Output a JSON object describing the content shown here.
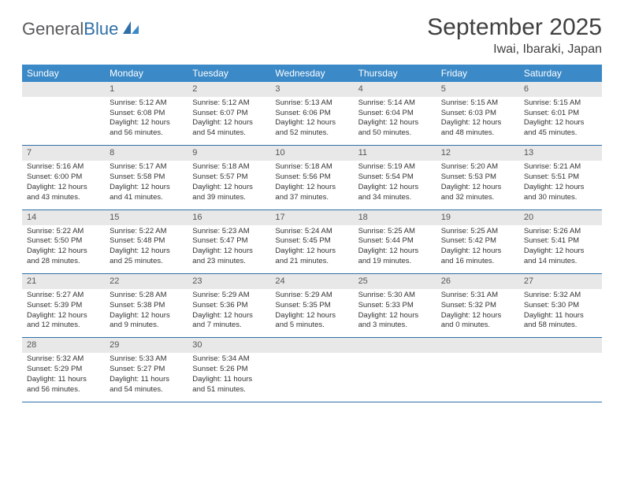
{
  "logo": {
    "text_general": "General",
    "text_blue": "Blue"
  },
  "header": {
    "month_title": "September 2025",
    "location": "Iwai, Ibaraki, Japan"
  },
  "colors": {
    "header_bg": "#3b89c7",
    "header_text": "#ffffff",
    "daynum_bg": "#e8e8e8",
    "cell_border": "#2f6fa7",
    "body_text": "#333333",
    "logo_gray": "#58595b",
    "logo_blue": "#2f6fa7"
  },
  "typography": {
    "month_title_fontsize": 30,
    "location_fontsize": 16,
    "dayheader_fontsize": 12,
    "daynum_fontsize": 11,
    "cell_fontsize": 9.5
  },
  "day_headers": [
    "Sunday",
    "Monday",
    "Tuesday",
    "Wednesday",
    "Thursday",
    "Friday",
    "Saturday"
  ],
  "weeks": [
    {
      "nums": [
        "",
        "1",
        "2",
        "3",
        "4",
        "5",
        "6"
      ],
      "cells": [
        null,
        {
          "sunrise": "Sunrise: 5:12 AM",
          "sunset": "Sunset: 6:08 PM",
          "daylight1": "Daylight: 12 hours",
          "daylight2": "and 56 minutes."
        },
        {
          "sunrise": "Sunrise: 5:12 AM",
          "sunset": "Sunset: 6:07 PM",
          "daylight1": "Daylight: 12 hours",
          "daylight2": "and 54 minutes."
        },
        {
          "sunrise": "Sunrise: 5:13 AM",
          "sunset": "Sunset: 6:06 PM",
          "daylight1": "Daylight: 12 hours",
          "daylight2": "and 52 minutes."
        },
        {
          "sunrise": "Sunrise: 5:14 AM",
          "sunset": "Sunset: 6:04 PM",
          "daylight1": "Daylight: 12 hours",
          "daylight2": "and 50 minutes."
        },
        {
          "sunrise": "Sunrise: 5:15 AM",
          "sunset": "Sunset: 6:03 PM",
          "daylight1": "Daylight: 12 hours",
          "daylight2": "and 48 minutes."
        },
        {
          "sunrise": "Sunrise: 5:15 AM",
          "sunset": "Sunset: 6:01 PM",
          "daylight1": "Daylight: 12 hours",
          "daylight2": "and 45 minutes."
        }
      ]
    },
    {
      "nums": [
        "7",
        "8",
        "9",
        "10",
        "11",
        "12",
        "13"
      ],
      "cells": [
        {
          "sunrise": "Sunrise: 5:16 AM",
          "sunset": "Sunset: 6:00 PM",
          "daylight1": "Daylight: 12 hours",
          "daylight2": "and 43 minutes."
        },
        {
          "sunrise": "Sunrise: 5:17 AM",
          "sunset": "Sunset: 5:58 PM",
          "daylight1": "Daylight: 12 hours",
          "daylight2": "and 41 minutes."
        },
        {
          "sunrise": "Sunrise: 5:18 AM",
          "sunset": "Sunset: 5:57 PM",
          "daylight1": "Daylight: 12 hours",
          "daylight2": "and 39 minutes."
        },
        {
          "sunrise": "Sunrise: 5:18 AM",
          "sunset": "Sunset: 5:56 PM",
          "daylight1": "Daylight: 12 hours",
          "daylight2": "and 37 minutes."
        },
        {
          "sunrise": "Sunrise: 5:19 AM",
          "sunset": "Sunset: 5:54 PM",
          "daylight1": "Daylight: 12 hours",
          "daylight2": "and 34 minutes."
        },
        {
          "sunrise": "Sunrise: 5:20 AM",
          "sunset": "Sunset: 5:53 PM",
          "daylight1": "Daylight: 12 hours",
          "daylight2": "and 32 minutes."
        },
        {
          "sunrise": "Sunrise: 5:21 AM",
          "sunset": "Sunset: 5:51 PM",
          "daylight1": "Daylight: 12 hours",
          "daylight2": "and 30 minutes."
        }
      ]
    },
    {
      "nums": [
        "14",
        "15",
        "16",
        "17",
        "18",
        "19",
        "20"
      ],
      "cells": [
        {
          "sunrise": "Sunrise: 5:22 AM",
          "sunset": "Sunset: 5:50 PM",
          "daylight1": "Daylight: 12 hours",
          "daylight2": "and 28 minutes."
        },
        {
          "sunrise": "Sunrise: 5:22 AM",
          "sunset": "Sunset: 5:48 PM",
          "daylight1": "Daylight: 12 hours",
          "daylight2": "and 25 minutes."
        },
        {
          "sunrise": "Sunrise: 5:23 AM",
          "sunset": "Sunset: 5:47 PM",
          "daylight1": "Daylight: 12 hours",
          "daylight2": "and 23 minutes."
        },
        {
          "sunrise": "Sunrise: 5:24 AM",
          "sunset": "Sunset: 5:45 PM",
          "daylight1": "Daylight: 12 hours",
          "daylight2": "and 21 minutes."
        },
        {
          "sunrise": "Sunrise: 5:25 AM",
          "sunset": "Sunset: 5:44 PM",
          "daylight1": "Daylight: 12 hours",
          "daylight2": "and 19 minutes."
        },
        {
          "sunrise": "Sunrise: 5:25 AM",
          "sunset": "Sunset: 5:42 PM",
          "daylight1": "Daylight: 12 hours",
          "daylight2": "and 16 minutes."
        },
        {
          "sunrise": "Sunrise: 5:26 AM",
          "sunset": "Sunset: 5:41 PM",
          "daylight1": "Daylight: 12 hours",
          "daylight2": "and 14 minutes."
        }
      ]
    },
    {
      "nums": [
        "21",
        "22",
        "23",
        "24",
        "25",
        "26",
        "27"
      ],
      "cells": [
        {
          "sunrise": "Sunrise: 5:27 AM",
          "sunset": "Sunset: 5:39 PM",
          "daylight1": "Daylight: 12 hours",
          "daylight2": "and 12 minutes."
        },
        {
          "sunrise": "Sunrise: 5:28 AM",
          "sunset": "Sunset: 5:38 PM",
          "daylight1": "Daylight: 12 hours",
          "daylight2": "and 9 minutes."
        },
        {
          "sunrise": "Sunrise: 5:29 AM",
          "sunset": "Sunset: 5:36 PM",
          "daylight1": "Daylight: 12 hours",
          "daylight2": "and 7 minutes."
        },
        {
          "sunrise": "Sunrise: 5:29 AM",
          "sunset": "Sunset: 5:35 PM",
          "daylight1": "Daylight: 12 hours",
          "daylight2": "and 5 minutes."
        },
        {
          "sunrise": "Sunrise: 5:30 AM",
          "sunset": "Sunset: 5:33 PM",
          "daylight1": "Daylight: 12 hours",
          "daylight2": "and 3 minutes."
        },
        {
          "sunrise": "Sunrise: 5:31 AM",
          "sunset": "Sunset: 5:32 PM",
          "daylight1": "Daylight: 12 hours",
          "daylight2": "and 0 minutes."
        },
        {
          "sunrise": "Sunrise: 5:32 AM",
          "sunset": "Sunset: 5:30 PM",
          "daylight1": "Daylight: 11 hours",
          "daylight2": "and 58 minutes."
        }
      ]
    },
    {
      "nums": [
        "28",
        "29",
        "30",
        "",
        "",
        "",
        ""
      ],
      "cells": [
        {
          "sunrise": "Sunrise: 5:32 AM",
          "sunset": "Sunset: 5:29 PM",
          "daylight1": "Daylight: 11 hours",
          "daylight2": "and 56 minutes."
        },
        {
          "sunrise": "Sunrise: 5:33 AM",
          "sunset": "Sunset: 5:27 PM",
          "daylight1": "Daylight: 11 hours",
          "daylight2": "and 54 minutes."
        },
        {
          "sunrise": "Sunrise: 5:34 AM",
          "sunset": "Sunset: 5:26 PM",
          "daylight1": "Daylight: 11 hours",
          "daylight2": "and 51 minutes."
        },
        null,
        null,
        null,
        null
      ]
    }
  ]
}
